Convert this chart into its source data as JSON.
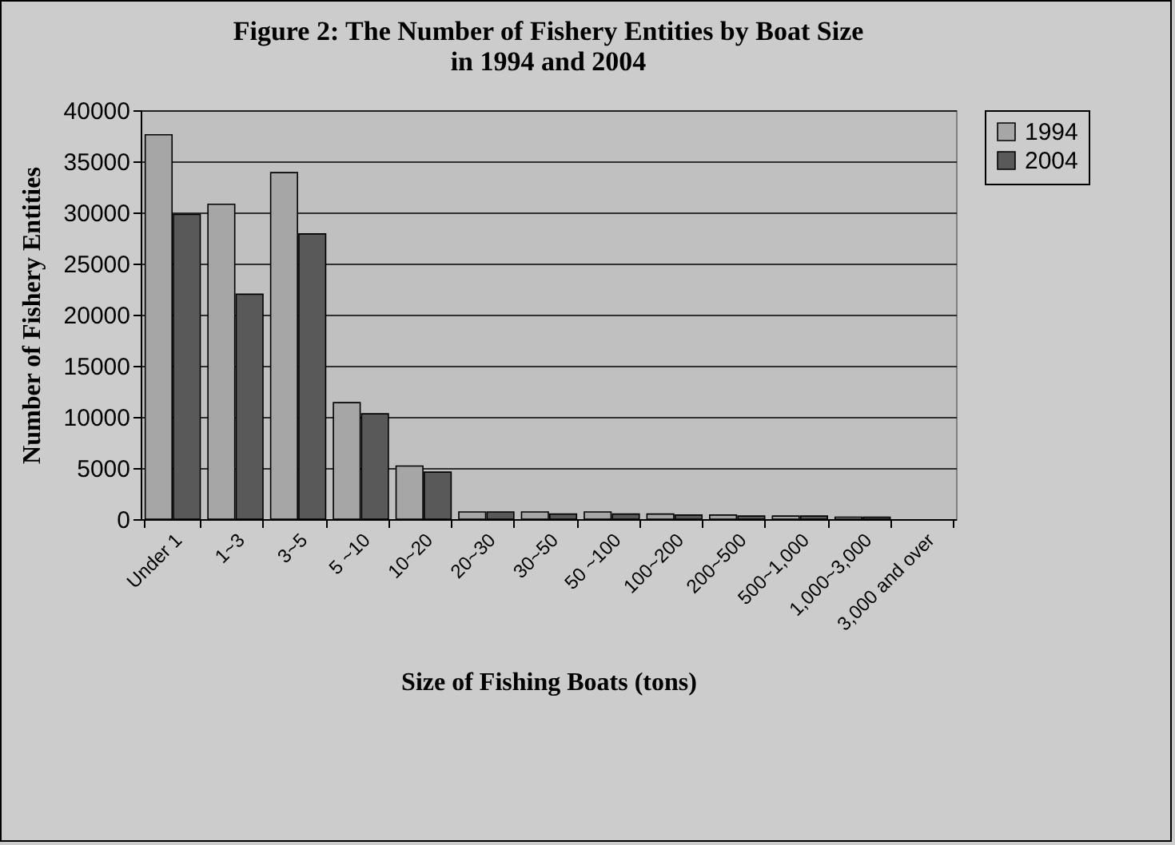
{
  "chart_data": {
    "type": "bar",
    "title": [
      "Figure 2: The Number of Fishery Entities by Boat Size",
      "in 1994 and 2004"
    ],
    "xlabel": "Size of Fishing Boats (tons)",
    "ylabel": "Number of Fishery Entities",
    "categories": [
      "Under 1",
      "1~3",
      "3~5",
      "5 ~10",
      "10~20",
      "20~30",
      "30~50",
      "50 ~100",
      "100~200",
      "200~500",
      "500~1,000",
      "1,000~3,000",
      "3,000 and over"
    ],
    "series": [
      {
        "name": "1994",
        "color": "#a6a6a6",
        "values": [
          37600,
          30800,
          33900,
          11400,
          5200,
          700,
          700,
          700,
          500,
          400,
          300,
          200,
          null
        ]
      },
      {
        "name": "2004",
        "color": "#595959",
        "values": [
          29800,
          22000,
          27900,
          10300,
          4600,
          700,
          500,
          500,
          400,
          300,
          300,
          200,
          null
        ]
      }
    ],
    "ylim": [
      0,
      40000
    ],
    "yticks": [
      0,
      5000,
      10000,
      15000,
      20000,
      25000,
      30000,
      35000,
      40000
    ],
    "grid": "y",
    "legend": "right"
  }
}
